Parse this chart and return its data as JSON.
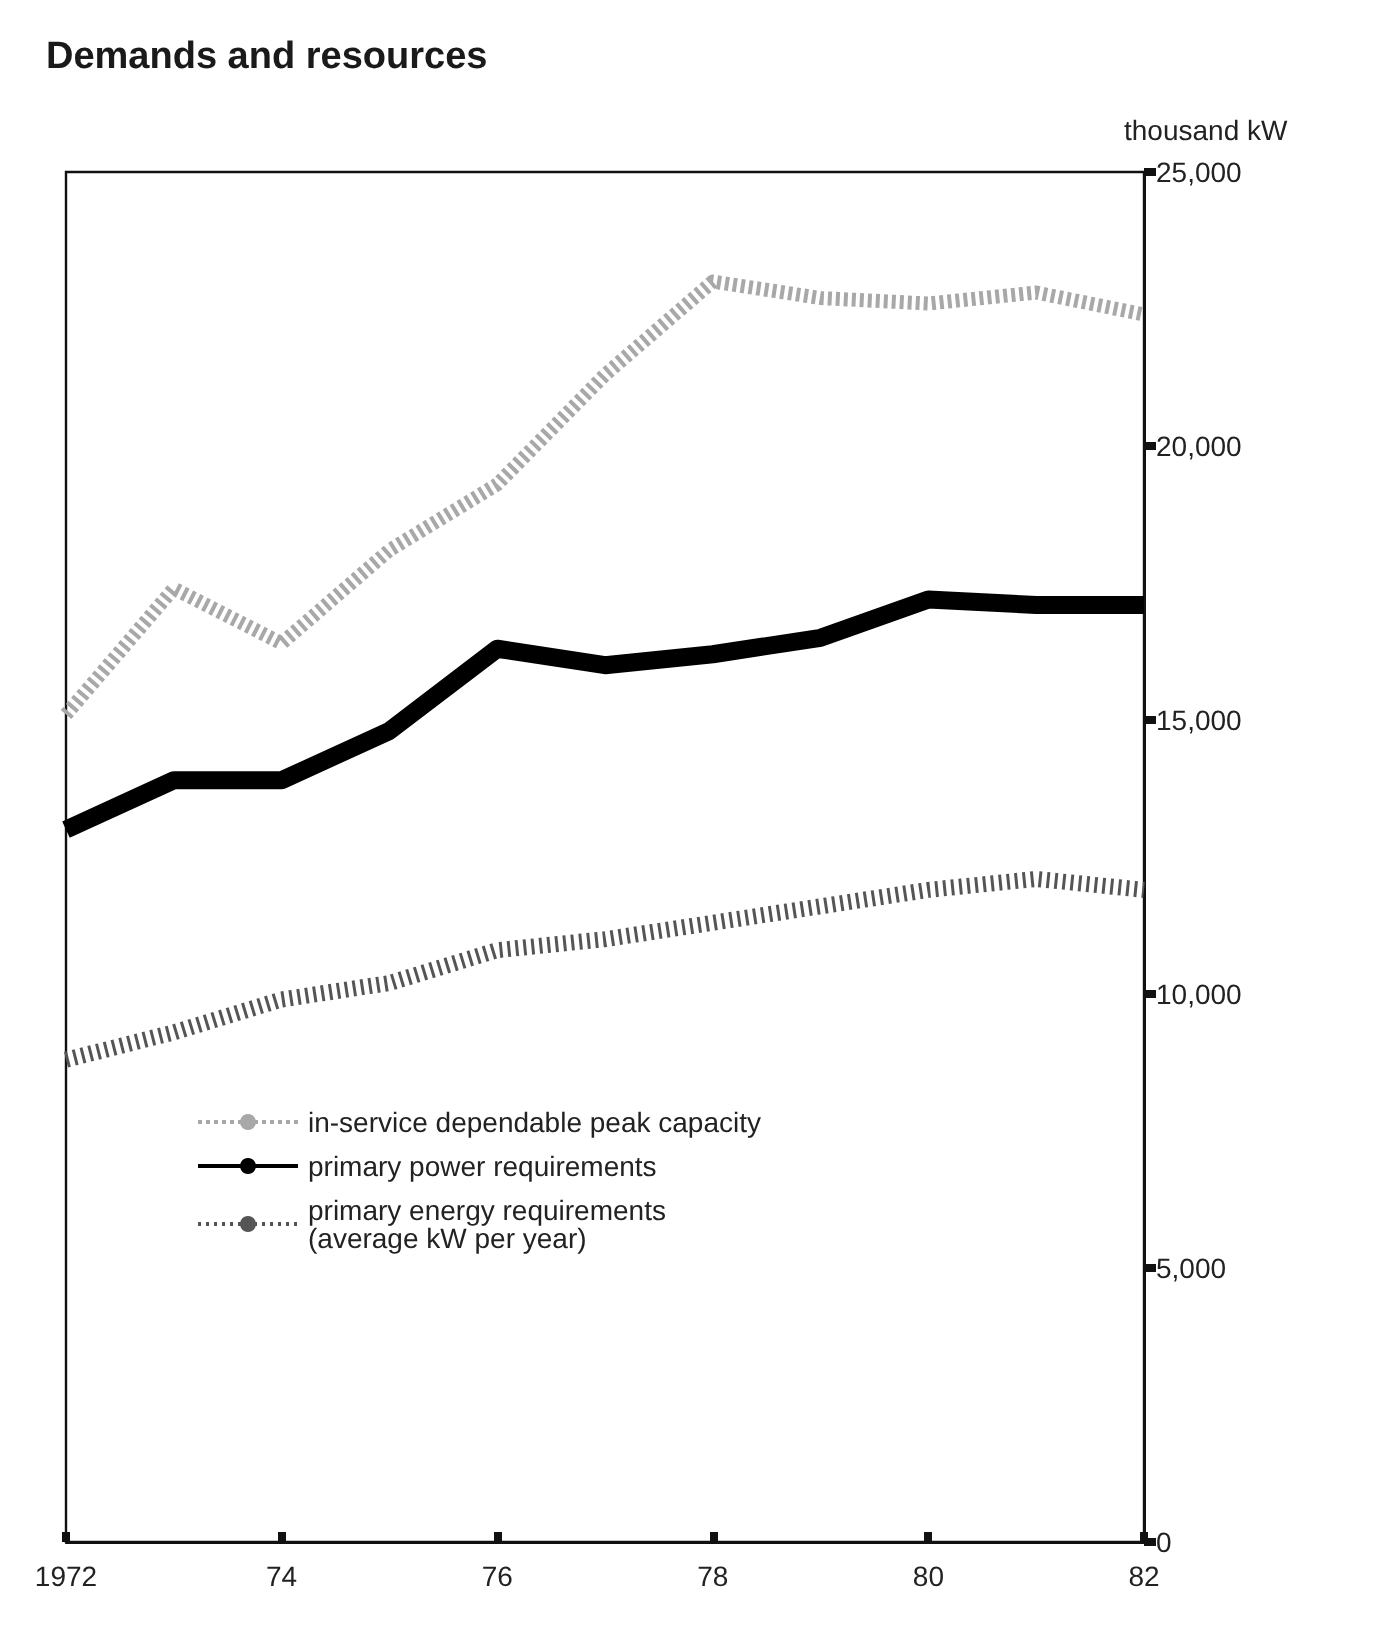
{
  "chart_data": {
    "type": "line",
    "title": "Demands and resources",
    "ylabel": "thousand kW",
    "x": [
      1972,
      1973,
      1974,
      1975,
      1976,
      1977,
      1978,
      1979,
      1980,
      1981,
      1982
    ],
    "series": [
      {
        "name": "in-service dependable peak capacity",
        "color": "#a8a8a8",
        "line_style": "dotted",
        "values": [
          15100,
          17400,
          16400,
          18100,
          19300,
          21300,
          23000,
          22700,
          22600,
          22800,
          22400
        ]
      },
      {
        "name": "primary power requirements",
        "color": "#000000",
        "line_style": "solid",
        "values": [
          13000,
          13900,
          13900,
          14800,
          16300,
          16000,
          16200,
          16500,
          17200,
          17100,
          17100
        ]
      },
      {
        "name": "primary energy requirements\n(average kW per year)",
        "color": "#555555",
        "line_style": "dashed",
        "values": [
          8800,
          9300,
          9900,
          10200,
          10800,
          11000,
          11300,
          11600,
          11900,
          12100,
          11900
        ]
      }
    ],
    "xlim": [
      1972,
      1982
    ],
    "xticks": [
      1972,
      {
        "value": 1974,
        "label": "74"
      },
      {
        "value": 1976,
        "label": "76"
      },
      {
        "value": 1978,
        "label": "78"
      },
      {
        "value": 1980,
        "label": "80"
      },
      {
        "value": 1982,
        "label": "82"
      }
    ],
    "ylim": [
      0,
      25000
    ],
    "yticks": [
      0,
      {
        "value": 5000,
        "label": "5,000"
      },
      {
        "value": 10000,
        "label": "10,000"
      },
      {
        "value": 15000,
        "label": "15,000"
      },
      {
        "value": 20000,
        "label": "20,000"
      },
      {
        "value": 25000,
        "label": "25,000"
      }
    ],
    "grid": false,
    "legend": "bottom left",
    "marker": "none"
  }
}
